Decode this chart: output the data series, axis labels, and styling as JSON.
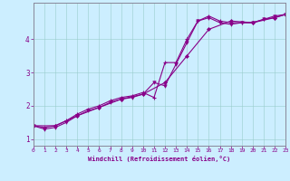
{
  "xlabel": "Windchill (Refroidissement éolien,°C)",
  "bg_color": "#cceeff",
  "line_color": "#880088",
  "xlim": [
    0,
    23
  ],
  "ylim": [
    0.8,
    5.1
  ],
  "xticks": [
    0,
    1,
    2,
    3,
    4,
    5,
    6,
    7,
    8,
    9,
    10,
    11,
    12,
    13,
    14,
    15,
    16,
    17,
    18,
    19,
    20,
    21,
    22,
    23
  ],
  "yticks": [
    1,
    2,
    3,
    4
  ],
  "line1_x": [
    0,
    1,
    2,
    3,
    4,
    5,
    6,
    7,
    8,
    9,
    10,
    11,
    12,
    13,
    14,
    15,
    16,
    17,
    18,
    19,
    20,
    21,
    22,
    23
  ],
  "line1_y": [
    1.4,
    1.3,
    1.35,
    1.5,
    1.7,
    1.85,
    1.95,
    2.1,
    2.2,
    2.25,
    2.35,
    2.7,
    2.6,
    3.25,
    3.9,
    4.55,
    4.65,
    4.5,
    4.45,
    4.5,
    4.5,
    4.6,
    4.7,
    4.75
  ],
  "line2_x": [
    0,
    1,
    2,
    3,
    4,
    5,
    6,
    7,
    8,
    9,
    10,
    11,
    12,
    13,
    14,
    15,
    16,
    17,
    18,
    19,
    20,
    21,
    22,
    23
  ],
  "line2_y": [
    1.4,
    1.35,
    1.4,
    1.55,
    1.75,
    1.9,
    2.0,
    2.15,
    2.25,
    2.3,
    2.4,
    2.25,
    3.3,
    3.3,
    4.0,
    4.55,
    4.7,
    4.55,
    4.5,
    4.5,
    4.5,
    4.6,
    4.65,
    4.75
  ],
  "line3_x": [
    0,
    2,
    4,
    6,
    8,
    10,
    12,
    14,
    16,
    18,
    20,
    22,
    23
  ],
  "line3_y": [
    1.4,
    1.4,
    1.7,
    1.95,
    2.2,
    2.35,
    2.7,
    3.5,
    4.3,
    4.55,
    4.5,
    4.65,
    4.75
  ]
}
